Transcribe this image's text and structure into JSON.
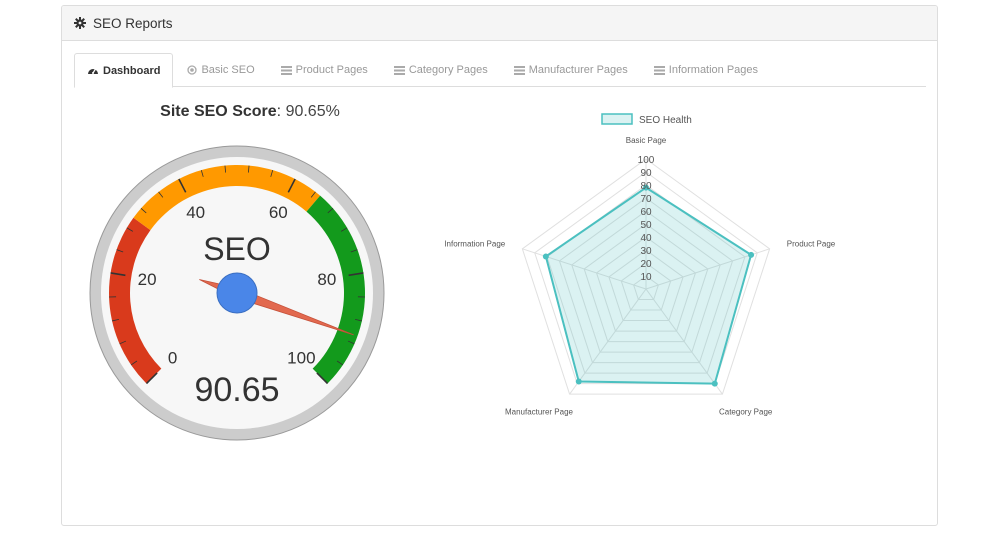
{
  "panel": {
    "title": "SEO Reports",
    "icon": "gear-icon"
  },
  "tabs": [
    {
      "label": "Dashboard",
      "icon": "dashboard-icon",
      "active": true
    },
    {
      "label": "Basic SEO",
      "icon": "circle-icon",
      "active": false
    },
    {
      "label": "Product Pages",
      "icon": "list-icon",
      "active": false
    },
    {
      "label": "Category Pages",
      "icon": "list-icon",
      "active": false
    },
    {
      "label": "Manufacturer Pages",
      "icon": "list-icon",
      "active": false
    },
    {
      "label": "Information Pages",
      "icon": "list-icon",
      "active": false
    }
  ],
  "score": {
    "label": "Site SEO Score",
    "value_text": "90.65%"
  },
  "gauge": {
    "title": "SEO",
    "value": 90.65,
    "value_text": "90.65",
    "min": 0,
    "max": 100,
    "tick_labels": [
      "0",
      "20",
      "40",
      "60",
      "80",
      "100"
    ],
    "bands": [
      {
        "from": 0,
        "to": 30,
        "color": "#d93a1c"
      },
      {
        "from": 30,
        "to": 65,
        "color": "#ff9900"
      },
      {
        "from": 65,
        "to": 100,
        "color": "#139a1c"
      }
    ],
    "needle_color": "#e2694f",
    "hub_color": "#4a86e8"
  },
  "chart_data": {
    "type": "radar",
    "legend": "SEO Health",
    "legend_position": "top",
    "categories": [
      "Basic Page",
      "Product Page",
      "Category Page",
      "Manufacturer Page",
      "Information Page"
    ],
    "series": [
      {
        "name": "SEO Health",
        "values": [
          78,
          85,
          90,
          88,
          81
        ]
      }
    ],
    "r_ticks": [
      "10",
      "20",
      "30",
      "40",
      "50",
      "60",
      "70",
      "80",
      "90",
      "100"
    ],
    "rlim": [
      0,
      100
    ],
    "color": "#4bc0c0",
    "fill": "rgba(75,192,192,0.2)"
  }
}
